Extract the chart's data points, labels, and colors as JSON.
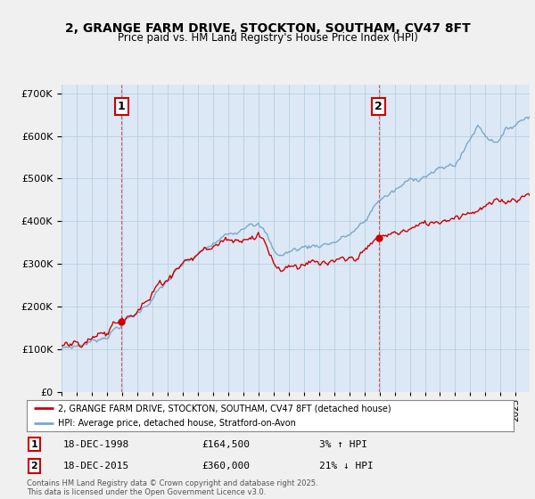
{
  "title": "2, GRANGE FARM DRIVE, STOCKTON, SOUTHAM, CV47 8FT",
  "subtitle": "Price paid vs. HM Land Registry's House Price Index (HPI)",
  "sale1": {
    "date": "18-DEC-1998",
    "price": 164500,
    "label": "1",
    "hpi_rel": "3% ↑ HPI"
  },
  "sale2": {
    "date": "18-DEC-2015",
    "price": 360000,
    "label": "2",
    "hpi_rel": "21% ↓ HPI"
  },
  "legend_line1": "2, GRANGE FARM DRIVE, STOCKTON, SOUTHAM, CV47 8FT (detached house)",
  "legend_line2": "HPI: Average price, detached house, Stratford-on-Avon",
  "footnote": "Contains HM Land Registry data © Crown copyright and database right 2025.\nThis data is licensed under the Open Government Licence v3.0.",
  "price_line_color": "#cc0000",
  "hpi_line_color": "#7aa8cc",
  "background_color": "#f0f0f0",
  "plot_bg_color": "#dce8f5",
  "grid_color": "#b8cfe0",
  "ylim": [
    0,
    720000
  ],
  "yticks": [
    0,
    100000,
    200000,
    300000,
    400000,
    500000,
    600000,
    700000
  ],
  "sale1_year": 1998.958,
  "sale2_year": 2015.958
}
